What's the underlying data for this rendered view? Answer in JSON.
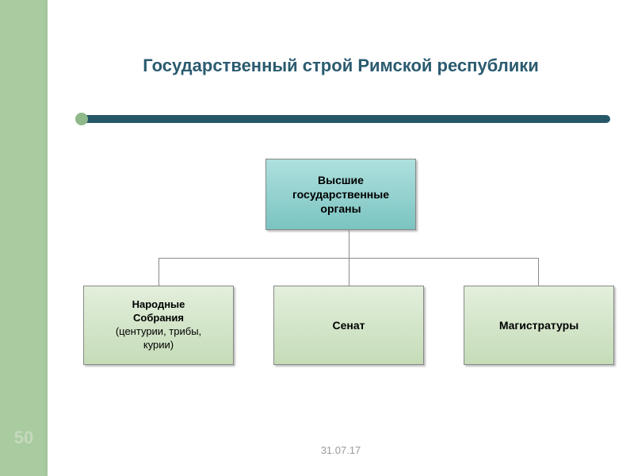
{
  "slide": {
    "title": "Государственный строй Римской республики",
    "title_fontsize": 22,
    "title_color": "#2b5b6f",
    "number": "50",
    "number_fontsize": 22,
    "number_color": "#c6d8be",
    "date": "31.07.17",
    "date_fontsize": 13,
    "date_color": "#9a9a9a"
  },
  "layout": {
    "sidebar_color": "#a8cca0",
    "background_color": "#ffffff",
    "underline_color": "#27586a",
    "underline_cap_color": "#8fb98a",
    "connector_color": "#8a8a8a"
  },
  "diagram": {
    "root": {
      "lines": [
        "Высшие",
        "государственные",
        "органы"
      ],
      "fontsize": 14,
      "bg_top": "#aee0de",
      "bg_bottom": "#7bc4c1"
    },
    "children": [
      {
        "bold_lines": [
          "Народные",
          "Собрания"
        ],
        "plain_lines": [
          "(центурии, трибы,",
          "курии)"
        ],
        "fontsize": 13,
        "bg_top": "#e3efdc",
        "bg_bottom": "#c5dcb8"
      },
      {
        "bold_lines": [
          "Сенат"
        ],
        "plain_lines": [],
        "fontsize": 14,
        "bg_top": "#e3efdc",
        "bg_bottom": "#c5dcb8"
      },
      {
        "bold_lines": [
          "Магистратуры"
        ],
        "plain_lines": [],
        "fontsize": 14,
        "bg_top": "#e3efdc",
        "bg_bottom": "#c5dcb8"
      }
    ]
  }
}
